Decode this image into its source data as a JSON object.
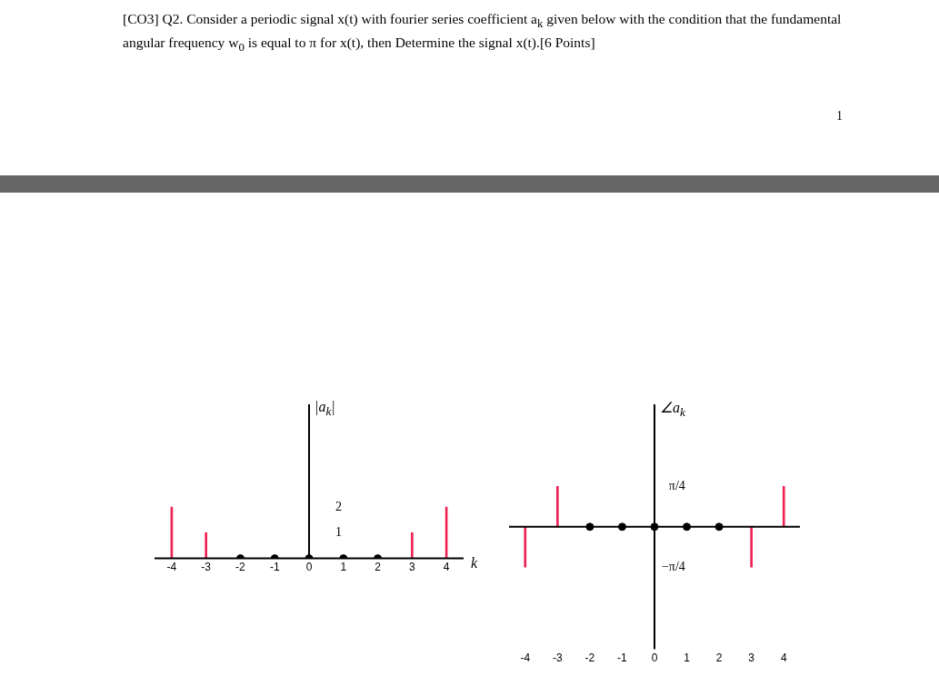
{
  "chart_data": [
    {
      "type": "bar",
      "title": "[CO3] Q2. Consider a periodic signal x(t) with fourier series coefficient a$_{k}$ given below with the condition that the fundamental angular frequency w$_{0}$ is equal to π for x(t), then Determine the signal x(t).[6 Points]",
      "annotations": [
        "1"
      ],
      "xlabel": "k",
      "ylabel": "|a$_{k}$|",
      "categories": [
        "-4",
        "-3",
        "-2",
        "-1",
        "0",
        "1",
        "2",
        "3",
        "4"
      ],
      "series": [
        {
          "color": "#ee2255",
          "values": [
            2,
            1,
            0,
            0,
            0,
            0,
            0,
            1,
            2
          ]
        },
        {
          "type": "scatter",
          "color": "#000000",
          "x": [
            "-2",
            "-1",
            "0",
            "1",
            "2"
          ],
          "values": [
            0,
            0,
            0,
            0,
            0
          ]
        }
      ],
      "ylim": [
        0,
        6
      ],
      "yticks": [
        1,
        2
      ],
      "grid": false,
      "legend": false
    },
    {
      "type": "bar",
      "ylabel": "∠a$_{k}$",
      "categories": [
        "-4",
        "-3",
        "-2",
        "-1",
        "0",
        "1",
        "2",
        "3",
        "4"
      ],
      "series": [
        {
          "color": "#ee2255",
          "values": [
            -0.79,
            0.79,
            0,
            0,
            0,
            0,
            0,
            -0.79,
            0.79
          ]
        },
        {
          "type": "scatter",
          "color": "#000000",
          "x": [
            "-2",
            "-1",
            "0",
            "1",
            "2"
          ],
          "values": [
            0,
            0,
            0,
            0,
            0
          ]
        }
      ],
      "ylim": [
        -2.4,
        2.4
      ],
      "yticks": [
        {
          "value": 0.79,
          "label": "π/4"
        },
        {
          "value": -0.79,
          "label": "−π/4"
        }
      ],
      "grid": false,
      "legend": false
    }
  ]
}
